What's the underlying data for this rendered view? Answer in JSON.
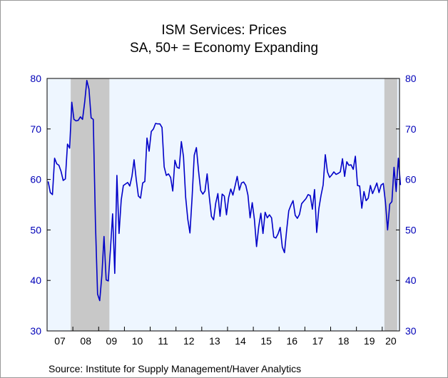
{
  "chart_data": {
    "type": "line",
    "title": "ISM Services: Prices",
    "subtitle": "SA, 50+ = Economy Expanding",
    "source": "Source:   Institute for Supply Management/Haver Analytics",
    "xlabel": "",
    "ylabel": "",
    "x_start": "2007-01",
    "x_end": "2020-08",
    "xlim": [
      2007.0,
      2020.67
    ],
    "ylim": [
      30,
      80
    ],
    "yticks": [
      30,
      40,
      50,
      60,
      70,
      80
    ],
    "xtick_labels": [
      "07",
      "08",
      "09",
      "10",
      "11",
      "12",
      "13",
      "14",
      "15",
      "16",
      "17",
      "18",
      "19",
      "20"
    ],
    "grid": false,
    "legend": "none",
    "recessions": [
      {
        "start": "2007-12",
        "end": "2009-06"
      },
      {
        "start": "2020-02",
        "end": "2020-08"
      }
    ],
    "series": [
      {
        "color": "#0000c8",
        "frequency": "monthly",
        "values": [
          59.6,
          57.4,
          57.0,
          64.2,
          63.1,
          62.8,
          61.6,
          59.8,
          60.1,
          67.0,
          66.2,
          75.3,
          71.9,
          71.6,
          71.7,
          72.4,
          71.9,
          75.3,
          79.6,
          77.9,
          72.2,
          71.9,
          51.5,
          37.3,
          36.0,
          41.0,
          48.7,
          40.1,
          39.9,
          46.2,
          53.2,
          41.4,
          60.8,
          49.3,
          55.9,
          58.8,
          59.1,
          59.4,
          58.7,
          60.6,
          63.9,
          60.0,
          56.7,
          56.3,
          59.3,
          59.6,
          68.2,
          65.6,
          69.5,
          70.0,
          71.1,
          71.0,
          71.0,
          70.3,
          62.5,
          60.8,
          61.1,
          60.4,
          57.7,
          63.8,
          62.4,
          62.2,
          67.5,
          64.5,
          56.5,
          52.1,
          49.4,
          56.4,
          64.8,
          66.3,
          61.7,
          57.8,
          57.1,
          57.7,
          61.1,
          56.6,
          52.7,
          52.0,
          55.3,
          57.2,
          52.7,
          57.1,
          56.7,
          53.0,
          56.4,
          58.1,
          56.9,
          58.7,
          60.6,
          57.9,
          59.3,
          59.5,
          58.8,
          56.9,
          52.4,
          55.4,
          52.1,
          46.7,
          50.6,
          53.3,
          49.3,
          53.5,
          52.4,
          53.0,
          52.4,
          48.6,
          48.4,
          49.2,
          50.5,
          46.6,
          45.5,
          49.9,
          53.8,
          54.9,
          55.8,
          52.9,
          52.3,
          53.1,
          55.2,
          55.7,
          56.2,
          57.0,
          56.8,
          54.1,
          58.0,
          49.5,
          54.2,
          56.8,
          58.9,
          64.9,
          61.5,
          60.4,
          60.9,
          61.5,
          61.0,
          61.2,
          61.5,
          64.1,
          60.6,
          63.5,
          62.8,
          62.9,
          62.0,
          64.6,
          58.8,
          58.7,
          54.3,
          57.6,
          55.8,
          56.3,
          58.8,
          57.2,
          58.2,
          59.3,
          57.4,
          58.9,
          59.2,
          55.5,
          50.0,
          55.1,
          55.6,
          62.4,
          57.6,
          64.2,
          58.9
        ]
      }
    ]
  },
  "colors": {
    "plot_bg": "#eef6ff",
    "recession": "#c8c8c8",
    "axis_text": "#0000b8",
    "tick_text": "#000000",
    "line": "#0000c8"
  }
}
